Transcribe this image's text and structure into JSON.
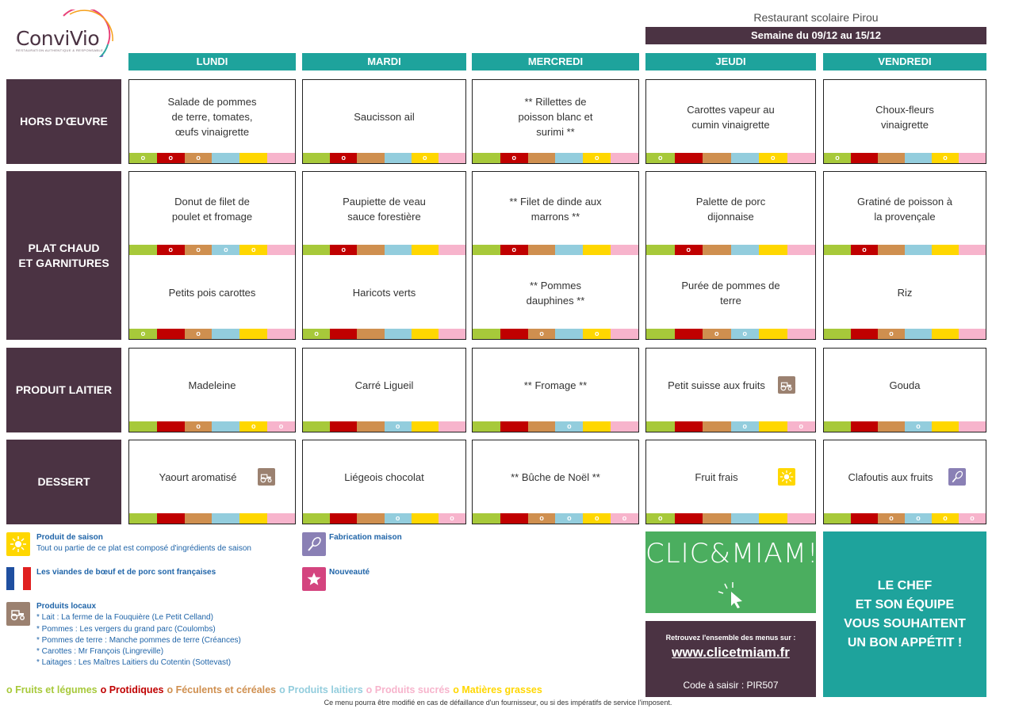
{
  "header": {
    "logo_text": "ConviVio",
    "logo_sub": "RESTAURATION AUTHENTIQUE & RESPONSABLE",
    "restaurant": "Restaurant scolaire Pirou",
    "semaine": "Semaine du 09/12 au 15/12"
  },
  "days": [
    "LUNDI",
    "MARDI",
    "MERCREDI",
    "JEUDI",
    "VENDREDI"
  ],
  "categories": {
    "hors_doeuvre": "HORS D'ŒUVRE",
    "plat_line1": "PLAT CHAUD",
    "plat_line2": "ET GARNITURES",
    "laitier": "PRODUIT LAITIER",
    "dessert": "DESSERT"
  },
  "strip_mark": "o",
  "menu": {
    "hors_doeuvre": [
      {
        "lines": [
          "Salade de pommes",
          "de terre, tomates,",
          "œufs vinaigrette"
        ],
        "marks": [
          1,
          1,
          1,
          0,
          0,
          0
        ]
      },
      {
        "lines": [
          "Saucisson ail"
        ],
        "marks": [
          0,
          1,
          0,
          0,
          1,
          0
        ]
      },
      {
        "lines": [
          "** Rillettes de",
          "poisson blanc et",
          "surimi **"
        ],
        "marks": [
          0,
          1,
          0,
          0,
          1,
          0
        ]
      },
      {
        "lines": [
          "Carottes vapeur au",
          "cumin vinaigrette"
        ],
        "marks": [
          1,
          0,
          0,
          0,
          1,
          0
        ]
      },
      {
        "lines": [
          "Choux-fleurs",
          "vinaigrette"
        ],
        "marks": [
          1,
          0,
          0,
          0,
          1,
          0
        ]
      }
    ],
    "plat": [
      {
        "lines": [
          "Donut de filet de",
          "poulet et fromage"
        ],
        "marks": [
          0,
          1,
          1,
          1,
          1,
          0
        ]
      },
      {
        "lines": [
          "Paupiette de veau",
          "sauce forestière"
        ],
        "marks": [
          0,
          1,
          0,
          0,
          0,
          0
        ]
      },
      {
        "lines": [
          "** Filet de dinde aux",
          "marrons **"
        ],
        "marks": [
          0,
          1,
          0,
          0,
          0,
          0
        ]
      },
      {
        "lines": [
          "Palette de porc",
          "dijonnaise"
        ],
        "marks": [
          0,
          1,
          0,
          0,
          0,
          0
        ]
      },
      {
        "lines": [
          "Gratiné de poisson à",
          "la provençale"
        ],
        "marks": [
          0,
          1,
          0,
          0,
          0,
          0
        ]
      }
    ],
    "garniture": [
      {
        "lines": [
          "Petits pois carottes"
        ],
        "marks": [
          1,
          0,
          1,
          0,
          0,
          0
        ]
      },
      {
        "lines": [
          "Haricots verts"
        ],
        "marks": [
          1,
          0,
          0,
          0,
          0,
          0
        ]
      },
      {
        "lines": [
          "** Pommes",
          "dauphines **"
        ],
        "marks": [
          0,
          0,
          1,
          0,
          1,
          0
        ]
      },
      {
        "lines": [
          "Purée de pommes de",
          "terre"
        ],
        "marks": [
          0,
          0,
          1,
          1,
          0,
          0
        ]
      },
      {
        "lines": [
          "Riz"
        ],
        "marks": [
          0,
          0,
          1,
          0,
          0,
          0
        ]
      }
    ],
    "laitier": [
      {
        "lines": [
          "Madeleine"
        ],
        "marks": [
          0,
          0,
          1,
          0,
          1,
          1
        ],
        "icon": ""
      },
      {
        "lines": [
          "Carré Ligueil"
        ],
        "marks": [
          0,
          0,
          0,
          1,
          0,
          0
        ],
        "icon": ""
      },
      {
        "lines": [
          "** Fromage **"
        ],
        "marks": [
          0,
          0,
          0,
          1,
          0,
          0
        ],
        "icon": ""
      },
      {
        "lines": [
          "Petit suisse aux fruits"
        ],
        "marks": [
          0,
          0,
          0,
          1,
          0,
          1
        ],
        "icon": "tractor-icon"
      },
      {
        "lines": [
          "Gouda"
        ],
        "marks": [
          0,
          0,
          0,
          1,
          0,
          0
        ],
        "icon": ""
      }
    ],
    "dessert": [
      {
        "lines": [
          "Yaourt aromatisé"
        ],
        "marks": [
          0,
          0,
          0,
          0,
          0,
          0
        ],
        "icon": "tractor-icon"
      },
      {
        "lines": [
          "Liégeois chocolat"
        ],
        "marks": [
          0,
          0,
          0,
          1,
          0,
          1
        ],
        "icon": ""
      },
      {
        "lines": [
          "** Bûche de Noël **"
        ],
        "marks": [
          0,
          0,
          1,
          1,
          1,
          1
        ],
        "icon": ""
      },
      {
        "lines": [
          "Fruit frais"
        ],
        "marks": [
          1,
          0,
          0,
          0,
          0,
          0
        ],
        "icon": "sun-icon"
      },
      {
        "lines": [
          "Clafoutis aux fruits"
        ],
        "marks": [
          0,
          0,
          1,
          1,
          1,
          1
        ],
        "icon": "whisk-icon"
      }
    ]
  },
  "legend": {
    "saison_title": "Produit de saison",
    "saison_desc": "Tout ou partie de ce plat est composé d'ingrédients de saison",
    "france": "Les viandes de bœuf et de porc sont françaises",
    "locaux_title": "Produits locaux",
    "locaux_items": [
      "* Lait : La ferme de la Fouquière (Le Petit Celland)",
      "* Pommes : Les vergers du grand parc (Coulombs)",
      "* Pommes de terre : Manche pommes de terre (Créances)",
      "* Carottes : Mr François (Lingreville)",
      "* Laitages : Les Maîtres Laitiers du Cotentin (Sottevast)"
    ],
    "maison": "Fabrication maison",
    "nouveaute": "Nouveauté"
  },
  "clic": {
    "logo": "CLIC&MIAM!",
    "retrouvez": "Retrouvez l'ensemble des menus sur :",
    "url": "www.clicetmiam.fr",
    "code": "Code à saisir : PIR507"
  },
  "chef": [
    "LE CHEF",
    "ET SON ÉQUIPE",
    "VOUS SOUHAITENT",
    "UN BON APPÉTIT !"
  ],
  "food_groups": [
    {
      "label": "o Fruits et légumes",
      "color": "#a7c93a"
    },
    {
      "label": "o Protidiques",
      "color": "#c00000"
    },
    {
      "label": "o Féculents et céréales",
      "color": "#cf8f4f"
    },
    {
      "label": "o Produits laitiers",
      "color": "#93cddd"
    },
    {
      "label": "o Produits sucrés",
      "color": "#f7b4cc"
    },
    {
      "label": "o Matières grasses",
      "color": "#ffd700"
    }
  ],
  "footnote": "Ce menu pourra être modifié en cas de défaillance d'un fournisseur, ou si des impératifs de service l'imposent.",
  "colors": {
    "plum": "#4b3343",
    "teal": "#1ea39c",
    "green": "#4bae5f"
  }
}
